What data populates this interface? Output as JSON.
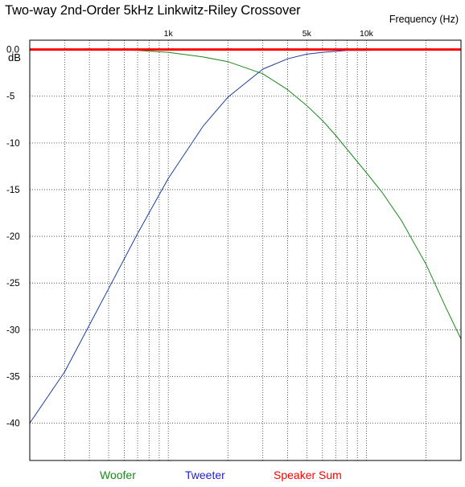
{
  "chart_data": {
    "type": "line",
    "title": "Two-way 2nd-Order 5kHz Linkwitz-Riley Crossover",
    "xlabel": "Frequency  (Hz)",
    "ylabel": "dB",
    "x_scale": "log",
    "xlim": [
      200,
      30000
    ],
    "ylim": [
      -44,
      1
    ],
    "x_ticks": [
      {
        "value": 1000,
        "label": "1k"
      },
      {
        "value": 5000,
        "label": "5k"
      },
      {
        "value": 10000,
        "label": "10k"
      }
    ],
    "x_gridlines": [
      300,
      400,
      500,
      600,
      700,
      800,
      900,
      1000,
      2000,
      3000,
      4000,
      5000,
      6000,
      7000,
      8000,
      9000,
      10000,
      20000,
      30000
    ],
    "y_ticks": [
      {
        "value": 0,
        "label": "0.0"
      },
      {
        "value": -5,
        "label": "-5"
      },
      {
        "value": -10,
        "label": "-10"
      },
      {
        "value": -15,
        "label": "-15"
      },
      {
        "value": -20,
        "label": "-20"
      },
      {
        "value": -25,
        "label": "-25"
      },
      {
        "value": -30,
        "label": "-30"
      },
      {
        "value": -35,
        "label": "-35"
      },
      {
        "value": -40,
        "label": "-40"
      }
    ],
    "reference_line_db": 1,
    "grid": true,
    "series": [
      {
        "name": "Woofer",
        "color": "#1a8a1a",
        "x": [
          300,
          500,
          700,
          1000,
          1500,
          2000,
          3000,
          4000,
          5000,
          6000,
          7000,
          8000,
          10000,
          12000,
          15000,
          20000,
          25000,
          30000
        ],
        "y": [
          -0.0,
          -0.0,
          -0.1,
          -0.3,
          -0.8,
          -1.3,
          -2.6,
          -4.3,
          -6.0,
          -7.6,
          -9.2,
          -10.7,
          -13.2,
          -15.3,
          -18.3,
          -23.0,
          -27.5,
          -31.0
        ]
      },
      {
        "name": "Tweeter",
        "color": "#1a3fa0",
        "x": [
          200,
          300,
          500,
          700,
          1000,
          1500,
          2000,
          3000,
          4000,
          5000,
          6000,
          7000,
          8000,
          10000,
          12000,
          15000,
          20000,
          25000
        ],
        "y": [
          -40.0,
          -34.5,
          -25.6,
          -19.7,
          -13.8,
          -8.2,
          -5.1,
          -2.1,
          -1.0,
          -0.5,
          -0.3,
          -0.2,
          -0.1,
          -0.1,
          -0.0,
          -0.0,
          -0.0,
          -0.0
        ]
      },
      {
        "name": "Speaker Sum",
        "color": "#ff0000",
        "x": [
          200,
          30000
        ],
        "y": [
          0,
          0
        ]
      }
    ],
    "legend": [
      {
        "label": "Woofer",
        "color": "#1a8a1a"
      },
      {
        "label": "Tweeter",
        "color": "#1f1fd6"
      },
      {
        "label": "Speaker Sum",
        "color": "#ff0000"
      }
    ],
    "legend_position": "bottom"
  }
}
